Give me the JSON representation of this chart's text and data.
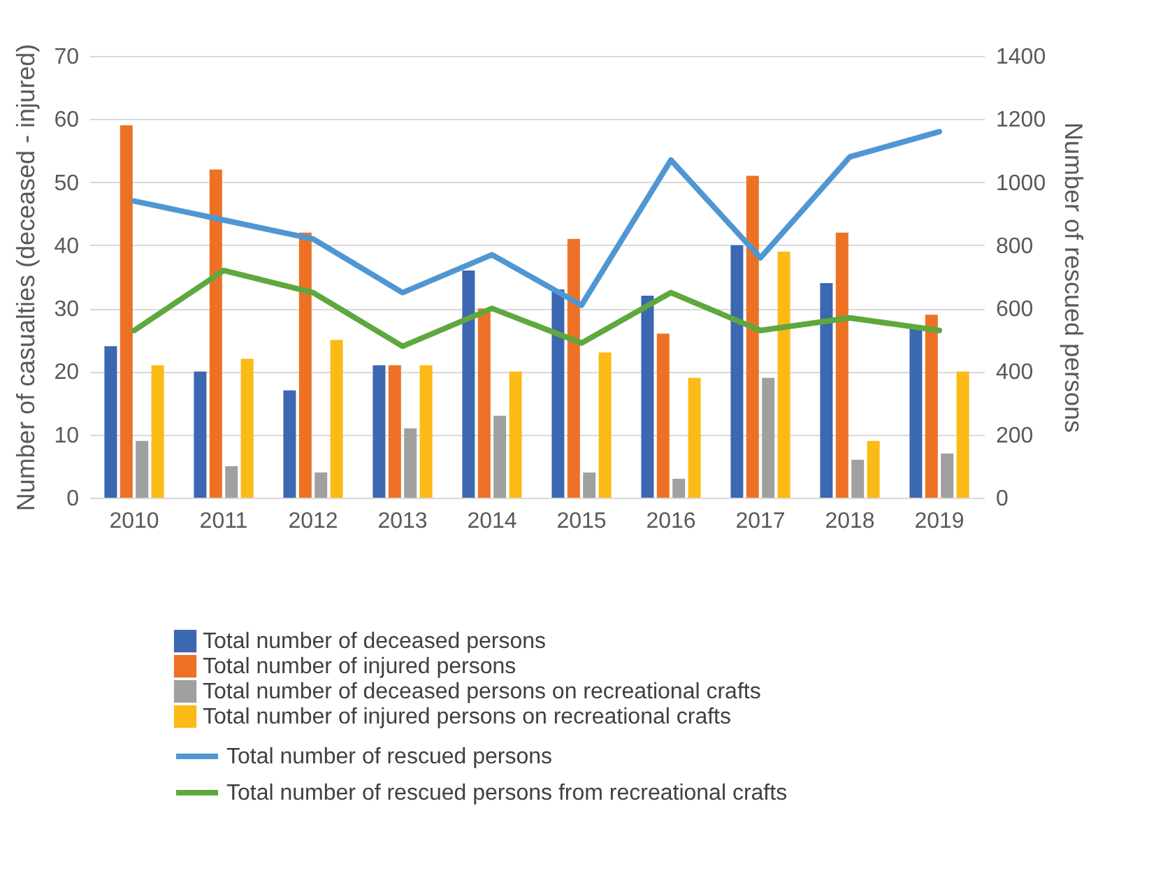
{
  "chart_data": {
    "type": "bar",
    "categories": [
      "2010",
      "2011",
      "2012",
      "2013",
      "2014",
      "2015",
      "2016",
      "2017",
      "2018",
      "2019"
    ],
    "ylabel": "Number of casualties (deceased - injured)",
    "y2label": "Number of rescued persons",
    "ylim": [
      0,
      70
    ],
    "yticks": [
      0,
      10,
      20,
      30,
      40,
      50,
      60,
      70
    ],
    "y2lim": [
      0,
      1400
    ],
    "y2ticks": [
      0,
      200,
      400,
      600,
      800,
      1000,
      1200,
      1400
    ],
    "grid": "y",
    "legend": "bottom",
    "marker": "none",
    "line_style": "solid",
    "series": [
      {
        "name": "Total number of deceased persons",
        "color": "#3c67b1",
        "values": [
          24,
          20,
          17,
          21,
          36,
          33,
          32,
          40,
          34,
          27
        ]
      },
      {
        "name": "Total number of injured persons",
        "color": "#ed7125",
        "values": [
          59,
          52,
          42,
          21,
          30,
          41,
          26,
          51,
          42,
          29
        ]
      },
      {
        "name": "Total number of deceased persons on recreational crafts",
        "color": "#a0a0a0",
        "values": [
          9,
          5,
          4,
          11,
          13,
          4,
          3,
          19,
          6,
          7
        ]
      },
      {
        "name": "Total number of injured persons on recreational crafts",
        "color": "#fbba16",
        "values": [
          21,
          22,
          25,
          21,
          20,
          23,
          19,
          39,
          9,
          20
        ]
      },
      {
        "name": "Total number of rescued persons",
        "type": "line",
        "axis": "y2",
        "color": "#4f97d3",
        "values": [
          940,
          880,
          820,
          650,
          770,
          610,
          1070,
          760,
          1080,
          1160
        ]
      },
      {
        "name": "Total number of rescued persons from recreational crafts",
        "type": "line",
        "axis": "y2",
        "color": "#5ea83e",
        "values": [
          530,
          720,
          650,
          480,
          600,
          490,
          650,
          530,
          570,
          530
        ]
      }
    ]
  }
}
